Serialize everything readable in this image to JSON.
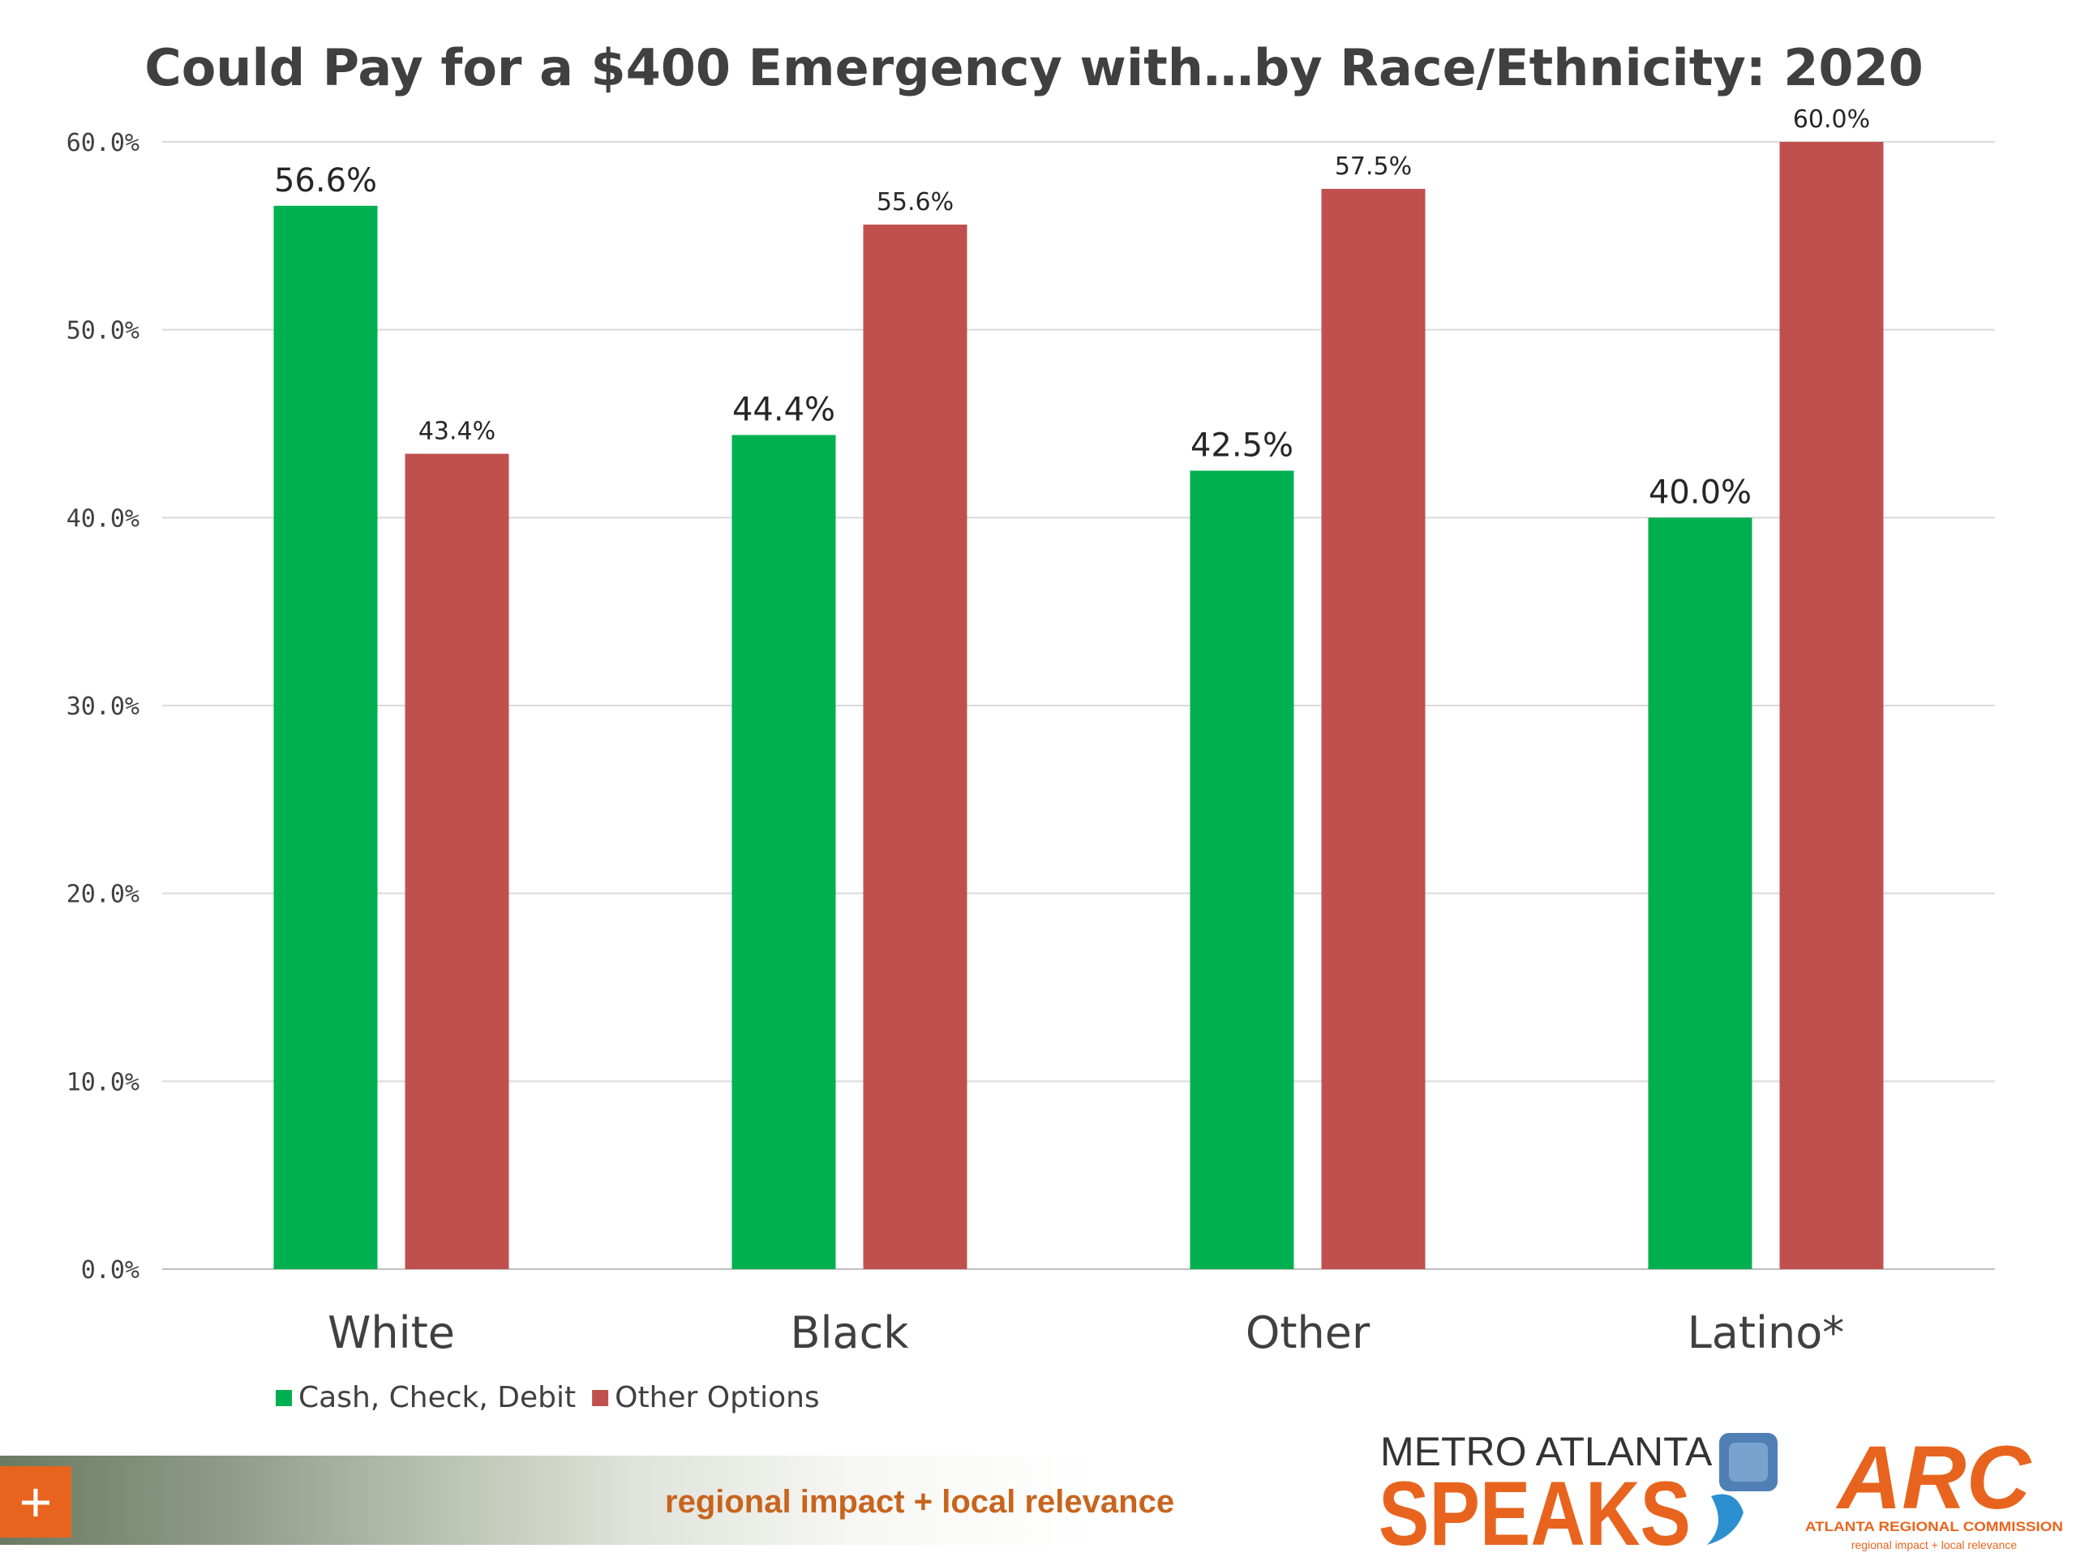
{
  "chart_data": {
    "type": "bar",
    "title": "Could Pay for a $400 Emergency with…by Race/Ethnicity: 2020",
    "categories": [
      "White",
      "Black",
      "Other",
      "Latino*"
    ],
    "series": [
      {
        "name": "Cash, Check, Debit",
        "color": "#00b050",
        "values": [
          56.6,
          44.4,
          42.5,
          40.0
        ],
        "labels": [
          "56.6%",
          "44.4%",
          "42.5%",
          "40.0%"
        ]
      },
      {
        "name": "Other Options",
        "color": "#c0504d",
        "values": [
          43.4,
          55.6,
          57.5,
          60.0
        ],
        "labels": [
          "43.4%",
          "55.6%",
          "57.5%",
          "60.0%"
        ]
      }
    ],
    "ylim": [
      0,
      60
    ],
    "yticks": [
      "0.0%",
      "10.0%",
      "20.0%",
      "30.0%",
      "40.0%",
      "50.0%",
      "60.0%"
    ],
    "grid": true,
    "legend": "bottom-left"
  },
  "footer": {
    "tagline": "regional impact + local relevance",
    "plus": "+",
    "speaks_logo": {
      "line1": "METRO ATLANTA",
      "line2": "SPEAKS"
    },
    "arc_logo": {
      "mark": "ARC",
      "name": "ATLANTA REGIONAL COMMISSION",
      "tagline": "regional impact + local relevance"
    }
  },
  "colors": {
    "green": "#00b050",
    "red": "#c0504d",
    "orange": "#e8641e",
    "grid": "#d9d9d9",
    "text": "#404040"
  }
}
